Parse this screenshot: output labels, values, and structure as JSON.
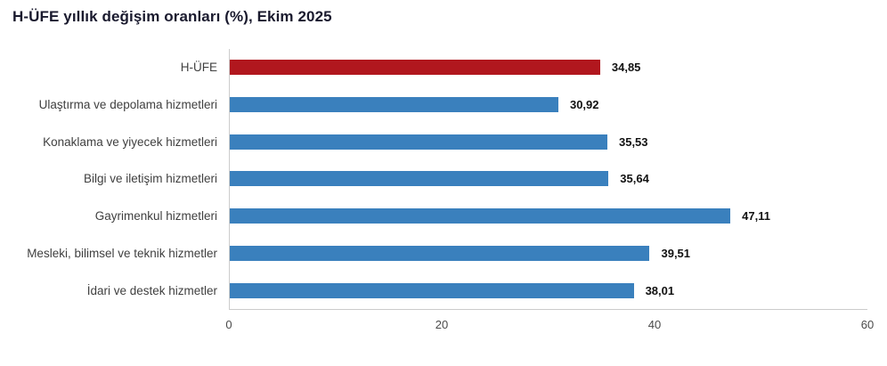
{
  "title": "H-ÜFE yıllık değişim oranları (%), Ekim 2025",
  "colors": {
    "highlight_bar": "#B1171E",
    "default_bar": "#3A80BD",
    "axis_line": "#cccccc"
  },
  "chart_data": {
    "type": "bar",
    "orientation": "horizontal",
    "title": "H-ÜFE yıllık değişim oranları (%), Ekim 2025",
    "categories": [
      "H-ÜFE",
      "Ulaştırma ve depolama hizmetleri",
      "Konaklama ve yiyecek hizmetleri",
      "Bilgi ve iletişim hizmetleri",
      "Gayrimenkul hizmetleri",
      "Mesleki, bilimsel ve teknik hizmetler",
      "İdari ve destek hizmetler"
    ],
    "values": [
      34.85,
      30.92,
      35.53,
      35.64,
      47.11,
      39.51,
      38.01
    ],
    "value_labels": [
      "34,85",
      "30,92",
      "35,53",
      "35,64",
      "47,11",
      "39,51",
      "38,01"
    ],
    "highlight_index": 0,
    "xlabel": "",
    "ylabel": "",
    "xlim": [
      0,
      60
    ],
    "x_ticks": [
      "0",
      "20",
      "40",
      "60"
    ],
    "grid": false,
    "legend": false
  }
}
